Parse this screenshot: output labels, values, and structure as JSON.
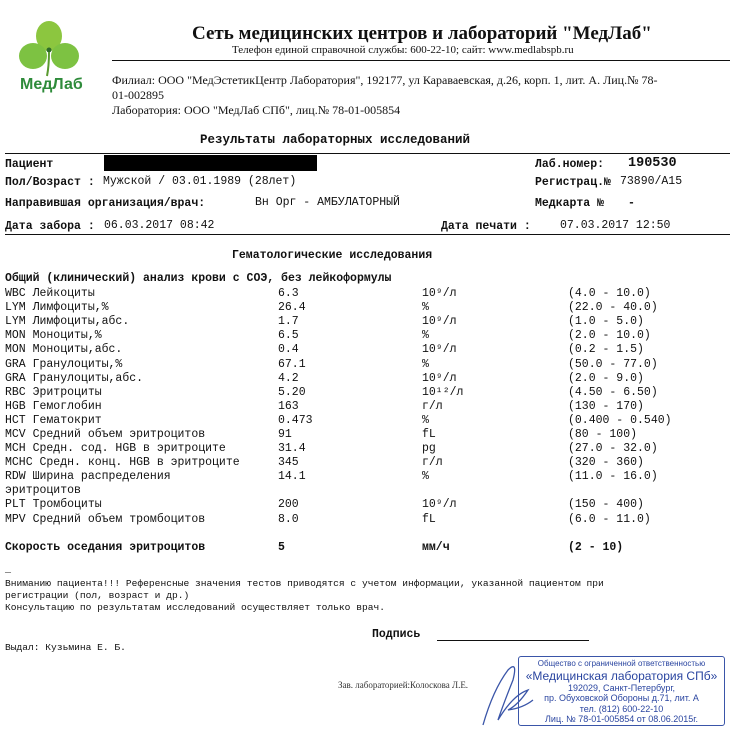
{
  "header": {
    "logo_text": "МедЛаб",
    "title": "Сеть медицинских центров и лабораторий \"МедЛаб\"",
    "phone_line": "Телефон единой справочной службы: 600-22-10; сайт: www.medlabspb.ru",
    "branch_line1": "Филиал: ООО \"МедЭстетикЦентр Лаборатория\", 192177, ул Караваевская, д.26, корп. 1, лит. А. Лиц.№ 78-",
    "branch_line2": "01-002895",
    "lab_line": "Лаборатория: ООО \"МедЛаб СПб\", лиц.№ 78-01-005854"
  },
  "report_title": "Результаты лабораторных исследований",
  "patient": {
    "patient_label": "Пациент",
    "sex_age_label": "Пол/Возраст :",
    "sex_age_value": "Мужской / 03.01.1989 (28лет)",
    "org_label": "Направившая организация/врач:",
    "org_value": "Вн Орг - АМБУЛАТОРНЫЙ",
    "date_taken_label": "Дата забора :",
    "date_taken_value": "06.03.2017 08:42",
    "lab_no_label": "Лаб.номер:",
    "lab_no_value": "190530",
    "reg_label": "Регистрац.№",
    "reg_value": "73890/А15",
    "card_label": "Медкарта №",
    "card_value": "-",
    "print_date_label": "Дата печати :",
    "print_date_value": "07.03.2017 12:50"
  },
  "section_title": "Гематологические исследования",
  "panel_title": "Общий (клинический) анализ крови с СОЭ, без лейкоформулы",
  "results": [
    {
      "name": "WBC Лейкоциты",
      "value": "6.3",
      "unit": "10⁹/л",
      "ref": "(4.0 - 10.0)"
    },
    {
      "name": "LYM Лимфоциты,%",
      "value": "26.4",
      "unit": "%",
      "ref": "(22.0 - 40.0)"
    },
    {
      "name": "LYM Лимфоциты,абс.",
      "value": "1.7",
      "unit": "10⁹/л",
      "ref": "(1.0 - 5.0)"
    },
    {
      "name": "MON Моноциты,%",
      "value": "6.5",
      "unit": "%",
      "ref": "(2.0 - 10.0)"
    },
    {
      "name": "MON Моноциты,абс.",
      "value": "0.4",
      "unit": "10⁹/л",
      "ref": "(0.2 - 1.5)"
    },
    {
      "name": "GRA Гранулоциты,%",
      "value": "67.1",
      "unit": "%",
      "ref": "(50.0 - 77.0)"
    },
    {
      "name": "GRA Гранулоциты,абс.",
      "value": "4.2",
      "unit": "10⁹/л",
      "ref": "(2.0 - 9.0)"
    },
    {
      "name": "RBC Эритроциты",
      "value": "5.20",
      "unit": "10¹²/л",
      "ref": "(4.50 - 6.50)"
    },
    {
      "name": "HGB Гемоглобин",
      "value": "163",
      "unit": "г/л",
      "ref": "(130 - 170)"
    },
    {
      "name": "HCT Гематокрит",
      "value": "0.473",
      "unit": "%",
      "ref": "(0.400 - 0.540)"
    },
    {
      "name": "MCV Средний объем эритроцитов",
      "value": "91",
      "unit": "fL",
      "ref": "(80 - 100)"
    },
    {
      "name": "MCH Средн. сод. HGB в эритроците",
      "value": "31.4",
      "unit": "pg",
      "ref": "(27.0 - 32.0)"
    },
    {
      "name": "MCHC Средн. конц. HGB в эритроците",
      "value": "345",
      "unit": "г/л",
      "ref": "(320 - 360)"
    },
    {
      "name": "RDW Ширина распределения",
      "name2": "эритроцитов",
      "value": "14.1",
      "unit": "%",
      "ref": "(11.0 - 16.0)"
    },
    {
      "name": "PLT Тромбоциты",
      "value": "200",
      "unit": "10⁹/л",
      "ref": "(150 - 400)"
    },
    {
      "name": "MPV Средний объем тромбоцитов",
      "value": "8.0",
      "unit": "fL",
      "ref": "(6.0 - 11.0)"
    }
  ],
  "esr": {
    "name": "Скорость оседания эритроцитов",
    "value": "5",
    "unit": "мм/ч",
    "ref": "(2 - 10)"
  },
  "footer": {
    "dash": "_",
    "notice1": "Вниманию пациента!!! Референсные значения тестов приводятся с учетом информации, указанной пациентом при",
    "notice2": "регистрации (пол, возраст и др.)",
    "notice3": "Консультацию по результатам исследований осуществляет только врач.",
    "signature_label": "Подпись",
    "issued_by": "Выдал: Кузьмина Е. Б.",
    "lab_head": "Зав. лабораторией:Колоскова Л.Е."
  },
  "stamp": {
    "line1": "Общество с ограниченной ответственностью",
    "line2": "«Медицинская лаборатория СПб»",
    "line3": "192029, Санкт-Петербург,",
    "line4": "пр. Обуховской Обороны д.71, лит. А",
    "line5": "тел. (812) 600-22-10",
    "line6": "Лиц. № 78-01-005854 от 08.06.2015г."
  },
  "colors": {
    "logo_green": "#7dc242",
    "logo_text": "#2e8b3a",
    "stamp_blue": "#2a45a0"
  }
}
